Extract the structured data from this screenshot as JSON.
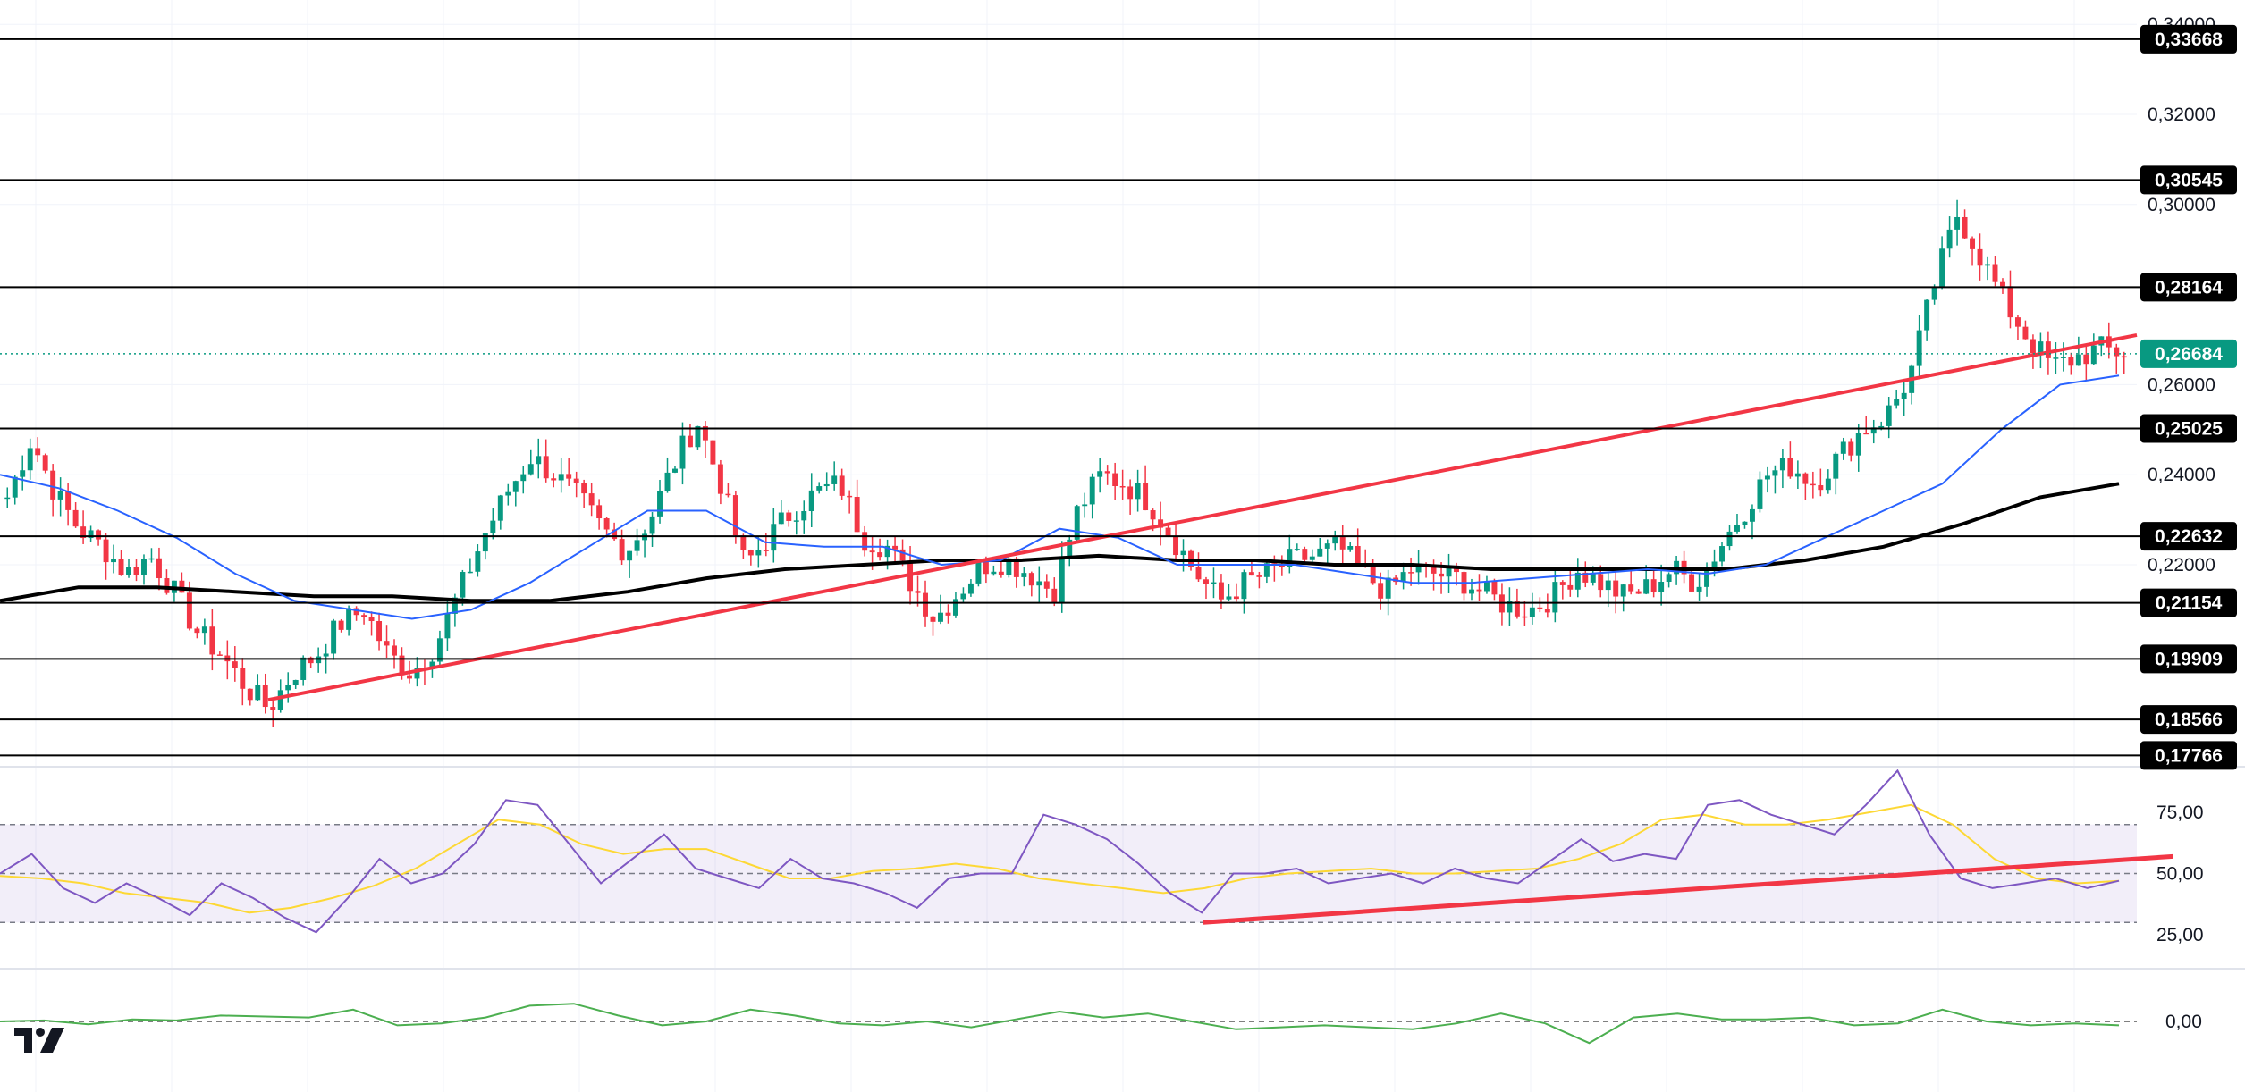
{
  "chart_data": [
    {
      "type": "candlestick",
      "title": "",
      "y_axis_ticks": [
        "0,34000",
        "0,32000",
        "0,30000",
        "0,26000",
        "0,24000",
        "0,22000"
      ],
      "ylim": [
        0.172,
        0.345
      ],
      "price_levels": [
        "0,33668",
        "0,30545",
        "0,28164",
        "0,25025",
        "0,22632",
        "0,21154",
        "0,19909",
        "0,18566",
        "0,17766"
      ],
      "current_price": "0,26684",
      "colors": {
        "up": "#089981",
        "down": "#f23645",
        "level": "#000000",
        "trend": "#f23645",
        "ma_fast": "#2962ff",
        "ma_slow": "#000000",
        "current": "#089981"
      },
      "price_anchors": [
        0.235,
        0.248,
        0.236,
        0.228,
        0.224,
        0.218,
        0.222,
        0.214,
        0.205,
        0.2,
        0.193,
        0.188,
        0.196,
        0.2,
        0.207,
        0.21,
        0.2,
        0.196,
        0.202,
        0.214,
        0.226,
        0.236,
        0.244,
        0.24,
        0.235,
        0.228,
        0.223,
        0.23,
        0.242,
        0.252,
        0.238,
        0.22,
        0.226,
        0.232,
        0.236,
        0.238,
        0.226,
        0.224,
        0.216,
        0.208,
        0.214,
        0.22,
        0.221,
        0.218,
        0.214,
        0.232,
        0.24,
        0.238,
        0.234,
        0.226,
        0.218,
        0.212,
        0.216,
        0.218,
        0.221,
        0.222,
        0.224,
        0.218,
        0.214,
        0.219,
        0.218,
        0.217,
        0.214,
        0.211,
        0.21,
        0.213,
        0.219,
        0.216,
        0.213,
        0.215,
        0.219,
        0.216,
        0.224,
        0.232,
        0.24,
        0.242,
        0.238,
        0.244,
        0.25,
        0.253,
        0.262,
        0.282,
        0.298,
        0.288,
        0.278,
        0.27,
        0.264,
        0.266,
        0.268,
        0.267
      ],
      "trend_line": [
        [
          0,
          0.19
        ],
        [
          1,
          0.271
        ]
      ],
      "slow_ma": [
        0.212,
        0.215,
        0.215,
        0.214,
        0.213,
        0.213,
        0.212,
        0.212,
        0.214,
        0.217,
        0.219,
        0.22,
        0.221,
        0.221,
        0.222,
        0.221,
        0.221,
        0.22,
        0.22,
        0.219,
        0.219,
        0.219,
        0.219,
        0.221,
        0.224,
        0.229,
        0.235,
        0.238
      ],
      "fast_ma": [
        0.24,
        0.237,
        0.232,
        0.226,
        0.218,
        0.212,
        0.21,
        0.208,
        0.21,
        0.216,
        0.224,
        0.232,
        0.232,
        0.225,
        0.224,
        0.224,
        0.22,
        0.221,
        0.228,
        0.226,
        0.22,
        0.22,
        0.22,
        0.218,
        0.216,
        0.216,
        0.217,
        0.218,
        0.219,
        0.218,
        0.22,
        0.226,
        0.232,
        0.238,
        0.25,
        0.26,
        0.262
      ]
    },
    {
      "type": "line",
      "title": "",
      "y_axis_ticks": [
        "75,00",
        "50,00",
        "25,00"
      ],
      "ylim": [
        20,
        95
      ],
      "band": [
        30,
        70
      ],
      "midline": 50,
      "colors": {
        "value": "#7e57c2",
        "signal": "#fdd835",
        "band": "#7e57c2",
        "trend": "#f23645",
        "overbought": "#4caf50"
      },
      "value": [
        50,
        58,
        44,
        38,
        46,
        40,
        33,
        46,
        40,
        32,
        26,
        40,
        56,
        46,
        50,
        62,
        80,
        78,
        62,
        46,
        56,
        66,
        52,
        48,
        44,
        56,
        48,
        46,
        42,
        36,
        48,
        50,
        50,
        74,
        70,
        64,
        54,
        42,
        34,
        50,
        50,
        52,
        46,
        48,
        50,
        46,
        52,
        48,
        46,
        55,
        64,
        55,
        58,
        56,
        78,
        80,
        74,
        70,
        66,
        78,
        92,
        66,
        48,
        44,
        46,
        48,
        44,
        47
      ],
      "signal": [
        49,
        48,
        46,
        42,
        40,
        38,
        34,
        36,
        40,
        45,
        52,
        62,
        72,
        70,
        62,
        58,
        60,
        60,
        54,
        48,
        48,
        51,
        52,
        54,
        52,
        48,
        46,
        44,
        42,
        44,
        48,
        50,
        51,
        52,
        50,
        50,
        51,
        52,
        56,
        62,
        72,
        74,
        70,
        70,
        72,
        75,
        78,
        70,
        56,
        48,
        46,
        47
      ],
      "trend_line": [
        [
          0.536,
          30
        ],
        [
          0.952,
          57
        ]
      ]
    },
    {
      "type": "line",
      "title": "",
      "y_axis_ticks": [
        "0,00"
      ],
      "ylim": [
        -2,
        2
      ],
      "midline": 0,
      "colors": {
        "value": "#4caf50",
        "midline": "#555555"
      },
      "value": [
        0.0,
        0.05,
        -0.15,
        0.1,
        0.05,
        0.3,
        0.25,
        0.2,
        0.6,
        -0.2,
        -0.1,
        0.2,
        0.8,
        0.9,
        0.3,
        -0.2,
        0.0,
        0.6,
        0.3,
        -0.1,
        -0.2,
        0.0,
        -0.3,
        0.1,
        0.5,
        0.2,
        0.4,
        0.0,
        -0.4,
        -0.3,
        -0.2,
        -0.3,
        -0.4,
        -0.1,
        0.4,
        -0.1,
        -1.1,
        0.2,
        0.4,
        0.1,
        0.1,
        0.2,
        -0.2,
        -0.1,
        0.6,
        0.0,
        -0.2,
        -0.1,
        -0.2
      ]
    }
  ]
}
